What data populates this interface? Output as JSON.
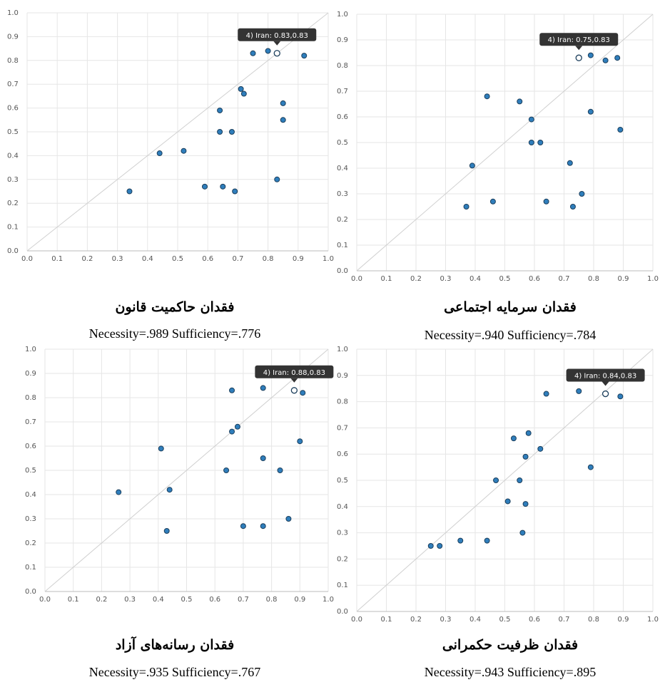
{
  "chart_data": [
    {
      "type": "scatter",
      "title": "فقدان حاکمیت قانون",
      "subtitle": "Necessity=.989 Sufficiency=.776",
      "x": [
        0.34,
        0.44,
        0.52,
        0.59,
        0.65,
        0.69,
        0.64,
        0.64,
        0.68,
        0.71,
        0.72,
        0.75,
        0.8,
        0.83,
        0.85,
        0.85,
        0.92
      ],
      "values": [
        0.25,
        0.41,
        0.42,
        0.27,
        0.27,
        0.25,
        0.59,
        0.5,
        0.5,
        0.68,
        0.66,
        0.83,
        0.84,
        0.3,
        0.62,
        0.55,
        0.82
      ],
      "annotation": {
        "text": "4) Iran: 0.83,0.83",
        "x": 0.83,
        "y": 0.83
      },
      "color": "#2f7ebc",
      "grid": true,
      "xlim": [
        0,
        1
      ],
      "ylim": [
        0,
        1
      ],
      "xticks": [
        {
          "value": 0,
          "label": "0.0"
        },
        0.1,
        0.2,
        0.3,
        0.4,
        0.5,
        0.6,
        0.7,
        0.8,
        0.9,
        {
          "value": 1,
          "label": "1.0"
        }
      ],
      "yticks": [
        {
          "value": 0,
          "label": "0.0"
        },
        0.1,
        0.2,
        0.3,
        0.4,
        0.5,
        0.6,
        0.7,
        0.8,
        0.9,
        {
          "value": 1,
          "label": "1.0"
        }
      ]
    },
    {
      "type": "scatter",
      "title": "فقدان سرمایه اجتماعی",
      "subtitle": "Necessity=.940 Sufficiency=.784",
      "x": [
        0.37,
        0.39,
        0.44,
        0.46,
        0.55,
        0.59,
        0.59,
        0.62,
        0.64,
        0.72,
        0.73,
        0.76,
        0.79,
        0.79,
        0.84,
        0.88,
        0.89
      ],
      "values": [
        0.25,
        0.41,
        0.68,
        0.27,
        0.66,
        0.59,
        0.5,
        0.5,
        0.27,
        0.42,
        0.25,
        0.3,
        0.84,
        0.62,
        0.82,
        0.83,
        0.55
      ],
      "annotation": {
        "text": "4) Iran: 0.75,0.83",
        "x": 0.75,
        "y": 0.83
      },
      "color": "#2f7ebc",
      "grid": true,
      "xlim": [
        0,
        1
      ],
      "ylim": [
        0,
        1
      ],
      "xticks": [
        {
          "value": 0,
          "label": "0.0"
        },
        0.1,
        0.2,
        0.3,
        0.4,
        0.5,
        0.6,
        0.7,
        0.8,
        0.9,
        {
          "value": 1,
          "label": "1.0"
        }
      ],
      "yticks": [
        {
          "value": 0,
          "label": "0.0"
        },
        0.1,
        0.2,
        0.3,
        0.4,
        0.5,
        0.6,
        0.7,
        0.8,
        0.9,
        {
          "value": 1,
          "label": "1.0"
        }
      ]
    },
    {
      "type": "scatter",
      "title": "فقدان رسانه‌های آزاد",
      "subtitle": "Necessity=.935 Sufficiency=.767",
      "x": [
        0.26,
        0.41,
        0.43,
        0.44,
        0.64,
        0.66,
        0.66,
        0.68,
        0.7,
        0.77,
        0.77,
        0.77,
        0.83,
        0.86,
        0.9,
        0.91
      ],
      "values": [
        0.41,
        0.59,
        0.25,
        0.42,
        0.5,
        0.83,
        0.66,
        0.68,
        0.27,
        0.84,
        0.55,
        0.27,
        0.5,
        0.3,
        0.62,
        0.82
      ],
      "annotation": {
        "text": "4) Iran: 0.88,0.83",
        "x": 0.88,
        "y": 0.83
      },
      "color": "#2f7ebc",
      "grid": true,
      "xlim": [
        0,
        1
      ],
      "ylim": [
        0,
        1
      ],
      "xticks": [
        {
          "value": 0,
          "label": "0.0"
        },
        0.1,
        0.2,
        0.3,
        0.4,
        0.5,
        0.6,
        0.7,
        0.8,
        0.9,
        {
          "value": 1,
          "label": "1.0"
        }
      ],
      "yticks": [
        {
          "value": 0,
          "label": "0.0"
        },
        0.1,
        0.2,
        0.3,
        0.4,
        0.5,
        0.6,
        0.7,
        0.8,
        0.9,
        {
          "value": 1,
          "label": "1.0"
        }
      ]
    },
    {
      "type": "scatter",
      "title": "فقدان ظرفیت حکمرانی",
      "subtitle": "Necessity=.943 Sufficiency=.895",
      "x": [
        0.25,
        0.28,
        0.35,
        0.44,
        0.47,
        0.51,
        0.53,
        0.55,
        0.56,
        0.57,
        0.57,
        0.58,
        0.62,
        0.64,
        0.75,
        0.79,
        0.89
      ],
      "values": [
        0.25,
        0.25,
        0.27,
        0.27,
        0.5,
        0.42,
        0.66,
        0.5,
        0.3,
        0.59,
        0.41,
        0.68,
        0.62,
        0.83,
        0.84,
        0.55,
        0.82
      ],
      "annotation": {
        "text": "4) Iran: 0.84,0.83",
        "x": 0.84,
        "y": 0.83
      },
      "color": "#2f7ebc",
      "grid": true,
      "xlim": [
        0,
        1
      ],
      "ylim": [
        0,
        1
      ],
      "xticks": [
        {
          "value": 0,
          "label": "0.0"
        },
        0.1,
        0.2,
        0.3,
        0.4,
        0.5,
        0.6,
        0.7,
        0.8,
        0.9,
        {
          "value": 1,
          "label": "1.0"
        }
      ],
      "yticks": [
        {
          "value": 0,
          "label": "0.0"
        },
        0.1,
        0.2,
        0.3,
        0.4,
        0.5,
        0.6,
        0.7,
        0.8,
        0.9,
        {
          "value": 1,
          "label": "1.0"
        }
      ]
    }
  ]
}
